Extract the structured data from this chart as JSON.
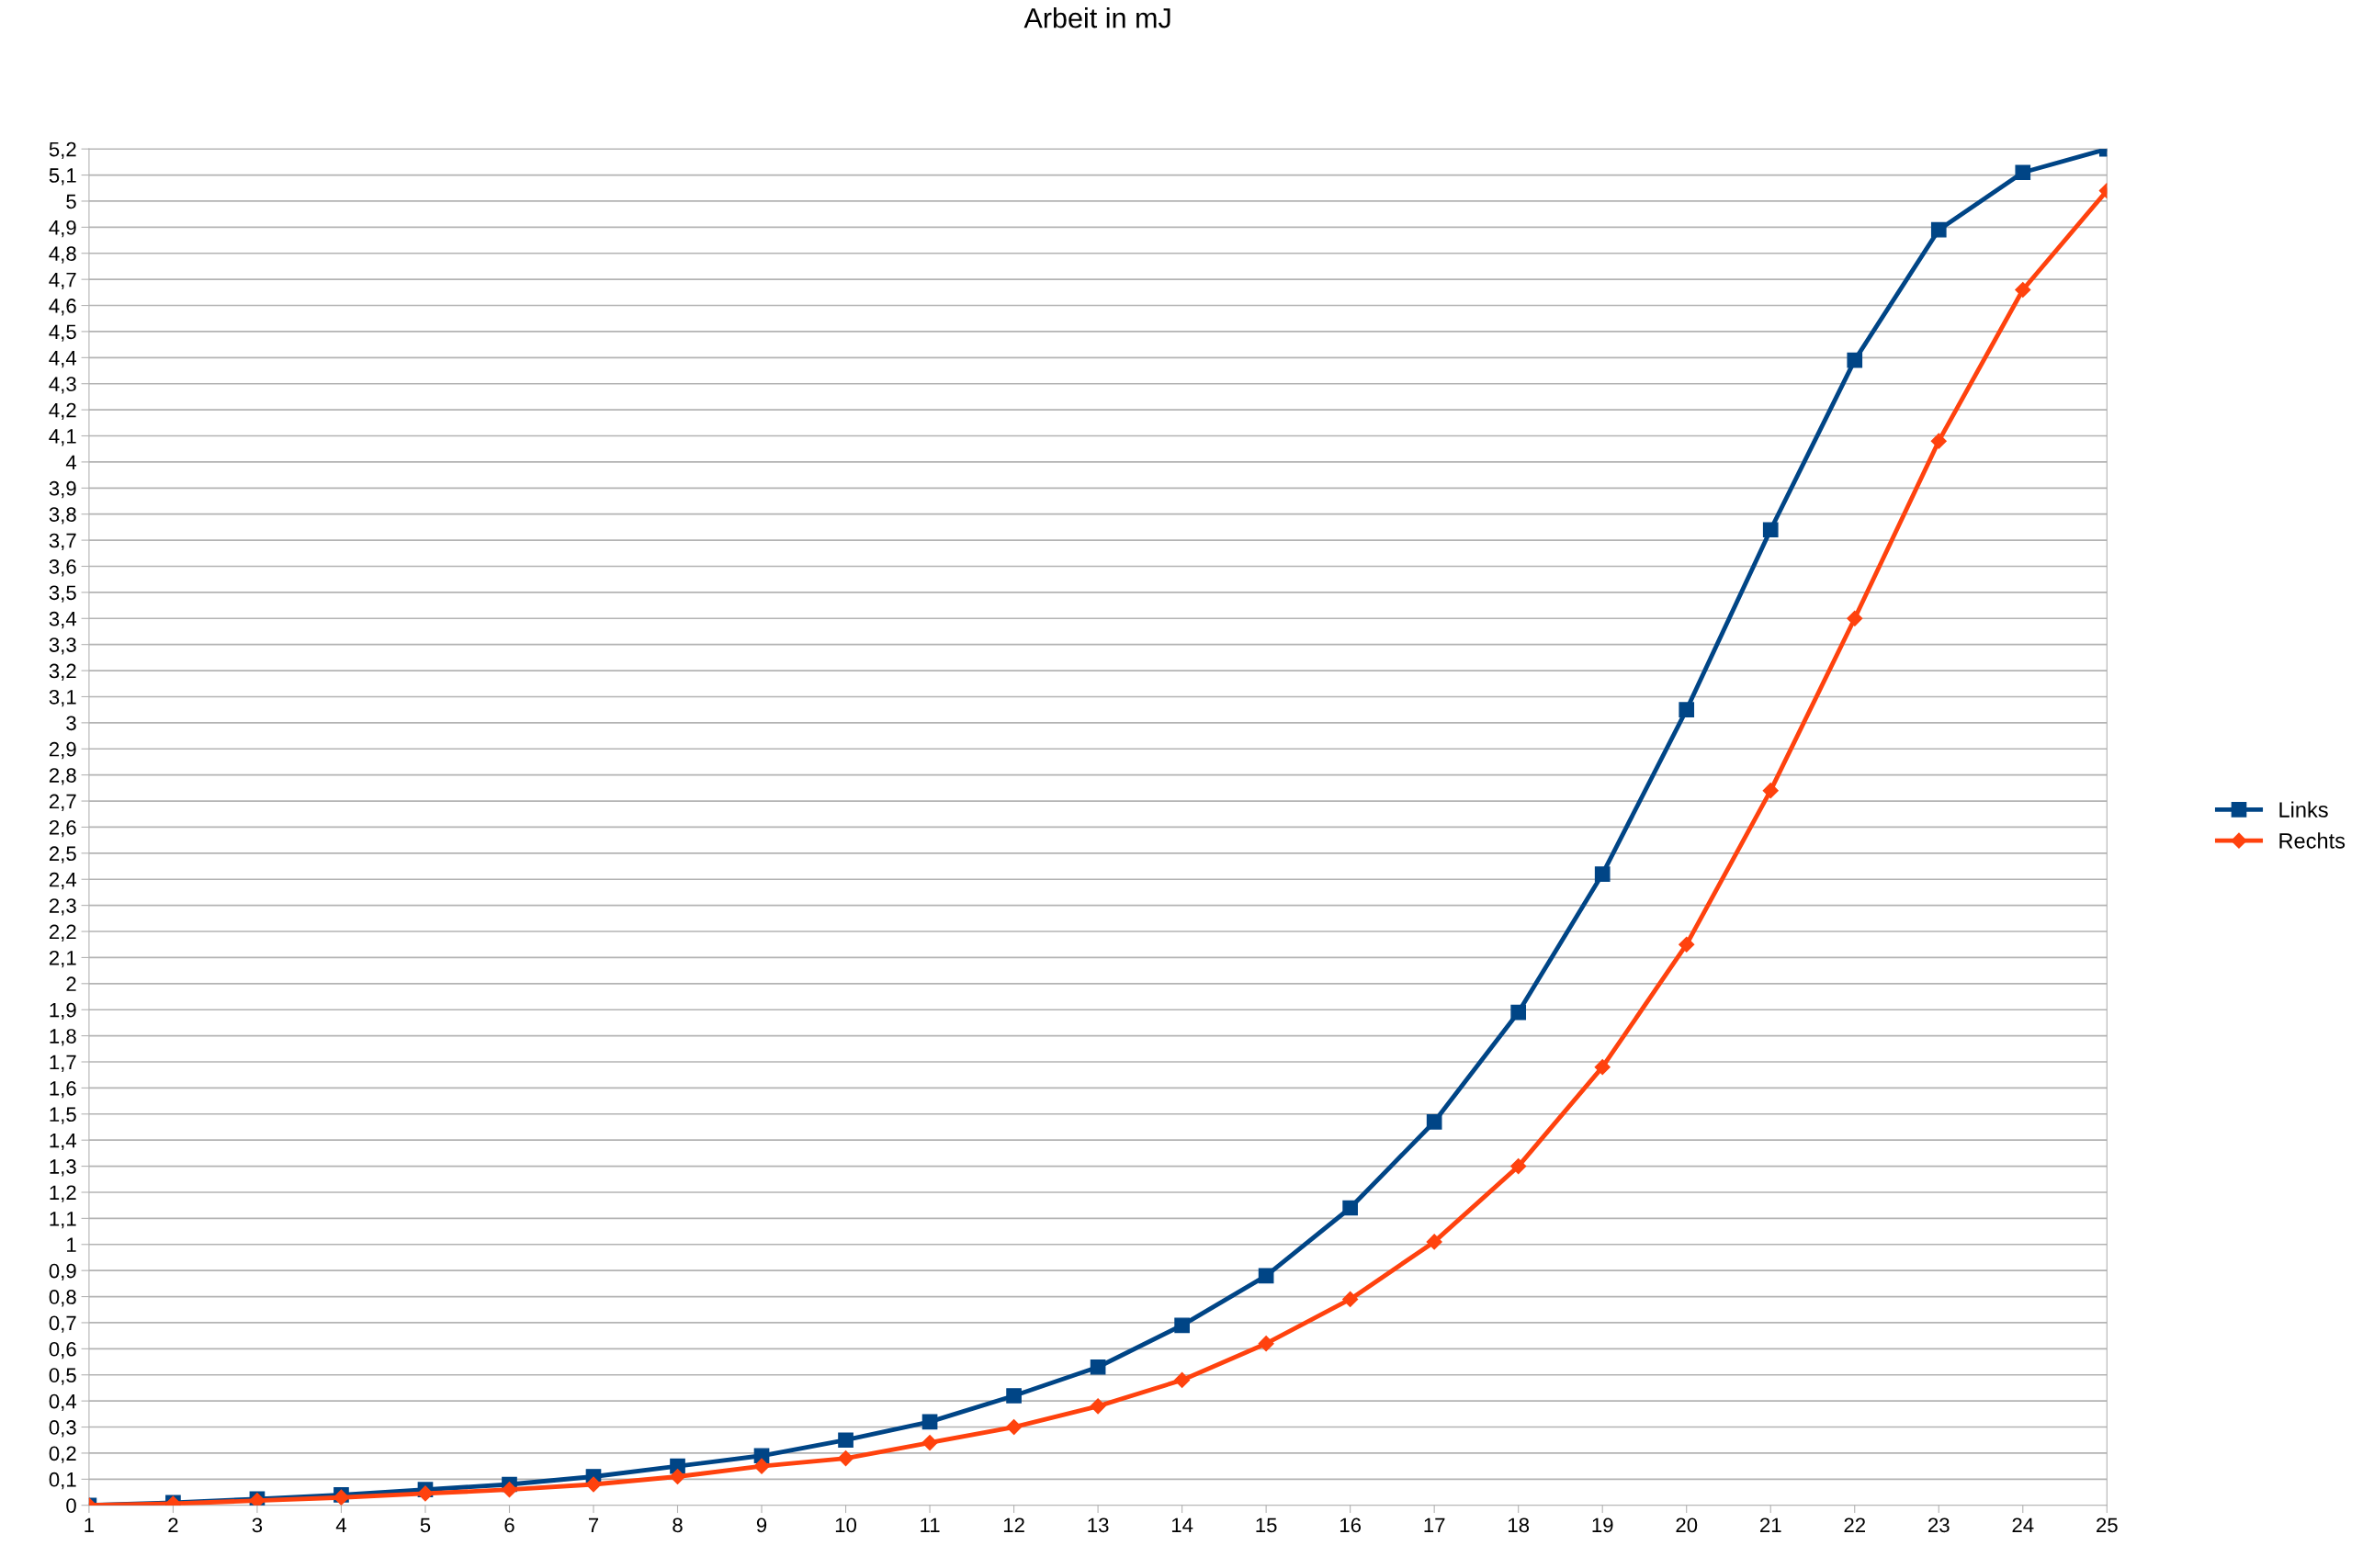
{
  "chart_data": {
    "type": "line",
    "title": "Arbeit in mJ",
    "categories": [
      "1",
      "2",
      "3",
      "4",
      "5",
      "6",
      "7",
      "8",
      "9",
      "10",
      "11",
      "12",
      "13",
      "14",
      "15",
      "16",
      "17",
      "18",
      "19",
      "20",
      "21",
      "22",
      "23",
      "24",
      "25"
    ],
    "series": [
      {
        "name": "Links",
        "color": "#004586",
        "marker": "square",
        "values": [
          0,
          0.01,
          0.024,
          0.04,
          0.06,
          0.08,
          0.11,
          0.15,
          0.19,
          0.25,
          0.32,
          0.42,
          0.53,
          0.69,
          0.88,
          1.14,
          1.47,
          1.89,
          2.42,
          3.05,
          3.74,
          4.39,
          4.89,
          5.11,
          5.2
        ]
      },
      {
        "name": "Rechts",
        "color": "#ff420e",
        "marker": "diamond",
        "values": [
          0,
          0.006,
          0.018,
          0.03,
          0.045,
          0.06,
          0.08,
          0.11,
          0.15,
          0.18,
          0.24,
          0.3,
          0.38,
          0.48,
          0.62,
          0.79,
          1.01,
          1.3,
          1.68,
          2.15,
          2.74,
          3.4,
          4.08,
          4.66,
          5.04
        ]
      }
    ],
    "ylim": [
      0,
      5.2
    ],
    "yticks": [
      0,
      {
        "value": 0.1,
        "label": "0,1"
      },
      {
        "value": 0.2,
        "label": "0,2"
      },
      {
        "value": 0.3,
        "label": "0,3"
      },
      {
        "value": 0.4,
        "label": "0,4"
      },
      {
        "value": 0.5,
        "label": "0,5"
      },
      {
        "value": 0.6,
        "label": "0,6"
      },
      {
        "value": 0.7,
        "label": "0,7"
      },
      {
        "value": 0.8,
        "label": "0,8"
      },
      {
        "value": 0.9,
        "label": "0,9"
      },
      1,
      {
        "value": 1.1,
        "label": "1,1"
      },
      {
        "value": 1.2,
        "label": "1,2"
      },
      {
        "value": 1.3,
        "label": "1,3"
      },
      {
        "value": 1.4,
        "label": "1,4"
      },
      {
        "value": 1.5,
        "label": "1,5"
      },
      {
        "value": 1.6,
        "label": "1,6"
      },
      {
        "value": 1.7,
        "label": "1,7"
      },
      {
        "value": 1.8,
        "label": "1,8"
      },
      {
        "value": 1.9,
        "label": "1,9"
      },
      2,
      {
        "value": 2.1,
        "label": "2,1"
      },
      {
        "value": 2.2,
        "label": "2,2"
      },
      {
        "value": 2.3,
        "label": "2,3"
      },
      {
        "value": 2.4,
        "label": "2,4"
      },
      {
        "value": 2.5,
        "label": "2,5"
      },
      {
        "value": 2.6,
        "label": "2,6"
      },
      {
        "value": 2.7,
        "label": "2,7"
      },
      {
        "value": 2.8,
        "label": "2,8"
      },
      {
        "value": 2.9,
        "label": "2,9"
      },
      3,
      {
        "value": 3.1,
        "label": "3,1"
      },
      {
        "value": 3.2,
        "label": "3,2"
      },
      {
        "value": 3.3,
        "label": "3,3"
      },
      {
        "value": 3.4,
        "label": "3,4"
      },
      {
        "value": 3.5,
        "label": "3,5"
      },
      {
        "value": 3.6,
        "label": "3,6"
      },
      {
        "value": 3.7,
        "label": "3,7"
      },
      {
        "value": 3.8,
        "label": "3,8"
      },
      {
        "value": 3.9,
        "label": "3,9"
      },
      4,
      {
        "value": 4.1,
        "label": "4,1"
      },
      {
        "value": 4.2,
        "label": "4,2"
      },
      {
        "value": 4.3,
        "label": "4,3"
      },
      {
        "value": 4.4,
        "label": "4,4"
      },
      {
        "value": 4.5,
        "label": "4,5"
      },
      {
        "value": 4.6,
        "label": "4,6"
      },
      {
        "value": 4.7,
        "label": "4,7"
      },
      {
        "value": 4.8,
        "label": "4,8"
      },
      {
        "value": 4.9,
        "label": "4,9"
      },
      5,
      {
        "value": 5.1,
        "label": "5,1"
      },
      {
        "value": 5.2,
        "label": "5,2"
      }
    ],
    "grid": "y",
    "legend": "right",
    "line_style": "solid"
  }
}
